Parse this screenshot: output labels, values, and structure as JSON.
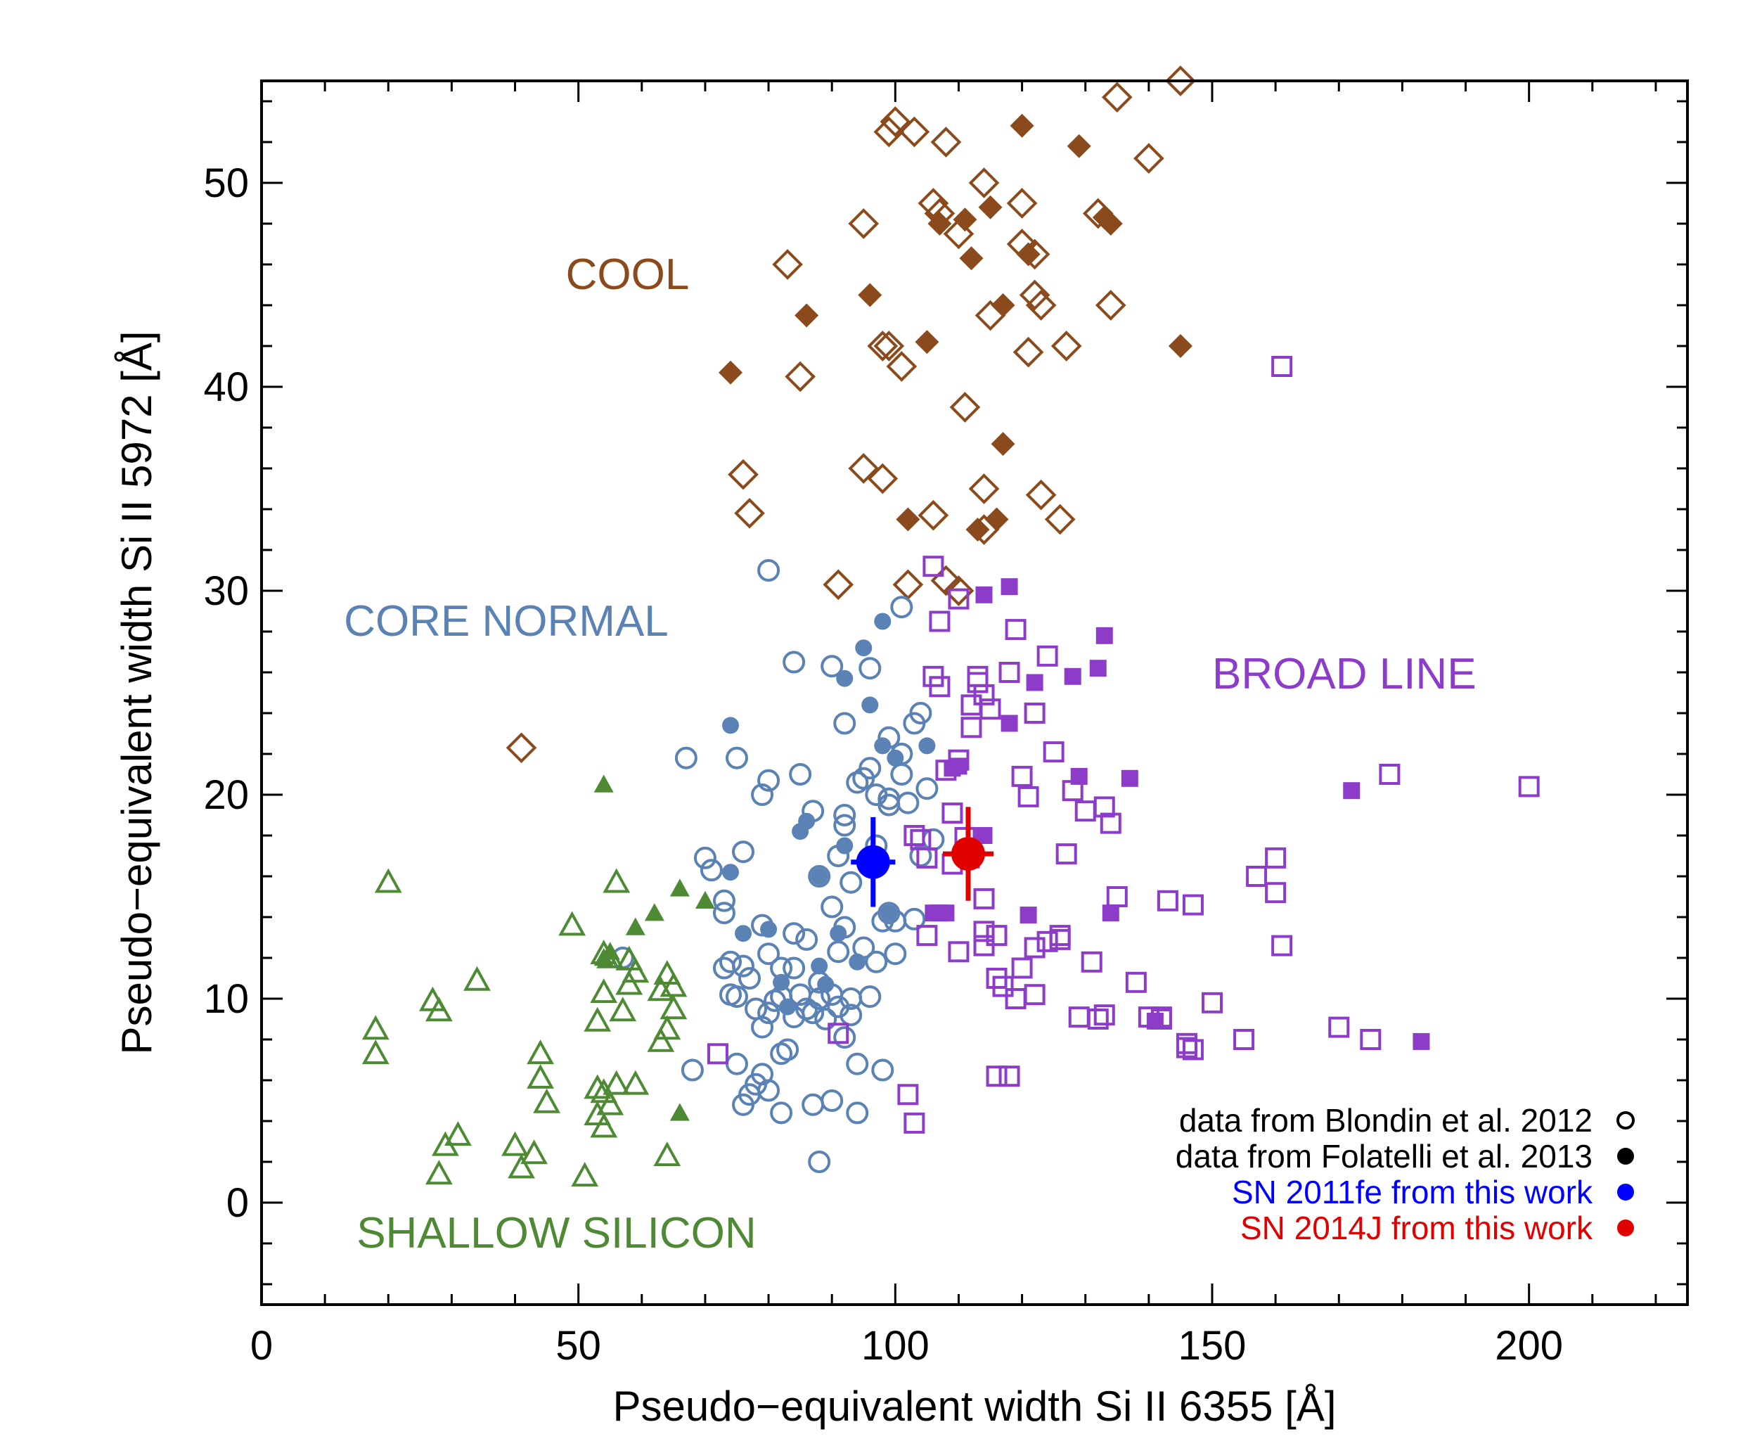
{
  "chart_data": {
    "type": "scatter",
    "title": "",
    "xlabel": "Pseudo−equivalent width Si II 6355 [Å]",
    "ylabel": "Pseudo−equivalent width Si II 5972 [Å]",
    "xlim": [
      0,
      225
    ],
    "ylim": [
      -5,
      55
    ],
    "xticks": [
      "0",
      "50",
      "100",
      "150",
      "200"
    ],
    "yticks": [
      "0",
      "10",
      "20",
      "30",
      "40",
      "50"
    ],
    "grid": false,
    "legend_position": "bottom-right",
    "legend": [
      {
        "label": "data from Blondin et al. 2012",
        "color": "#000000",
        "filled": false
      },
      {
        "label": "data from Folatelli et al. 2013",
        "color": "#000000",
        "filled": true
      },
      {
        "label": "SN 2011fe from this work",
        "color": "#0000ff",
        "filled": true
      },
      {
        "label": "SN 2014J from this work",
        "color": "#e00000",
        "filled": true
      }
    ],
    "group_labels": [
      {
        "text": "COOL",
        "color": "#8b4a1c"
      },
      {
        "text": "CORE NORMAL",
        "color": "#5b82b4"
      },
      {
        "text": "BROAD LINE",
        "color": "#8c3cc8"
      },
      {
        "text": "SHALLOW SILICON",
        "color": "#4e8a34"
      }
    ],
    "series": [
      {
        "name": "COOL",
        "marker": "diamond",
        "color": "#8b4a1c",
        "filled": false,
        "x": [
          100,
          103,
          108,
          99,
          106,
          114,
          120,
          95,
          132,
          110,
          120,
          122,
          123,
          83,
          122,
          134,
          98,
          127,
          99,
          85,
          101,
          111,
          76,
          77,
          95,
          98,
          114,
          123,
          106,
          126,
          91,
          102,
          108,
          110,
          114,
          140,
          41,
          107,
          135,
          145,
          115,
          121
        ],
        "y": [
          53,
          52.5,
          52,
          52.5,
          49,
          50,
          49,
          48,
          48.5,
          47.5,
          47,
          46.5,
          44,
          46,
          44.5,
          44,
          42,
          42,
          42,
          40.5,
          41,
          39,
          35.7,
          33.8,
          36,
          35.5,
          35,
          34.7,
          33.7,
          33.5,
          30.3,
          30.3,
          30.5,
          30,
          33,
          51.2,
          22.3,
          48.5,
          54.2,
          55,
          43.5,
          41.7
        ]
      },
      {
        "name": "COOL",
        "marker": "diamond",
        "color": "#8b4a1c",
        "filled": true,
        "x": [
          120,
          129,
          115,
          134,
          111,
          121,
          112,
          96,
          86,
          74,
          105,
          117,
          117,
          102,
          116,
          145,
          107,
          113,
          133
        ],
        "y": [
          52.8,
          51.8,
          48.8,
          48,
          48.2,
          46.5,
          46.3,
          44.5,
          43.5,
          40.7,
          42.2,
          44,
          37.2,
          33.5,
          33.5,
          42,
          48,
          33,
          48.3
        ]
      },
      {
        "name": "CORE NORMAL",
        "marker": "circle",
        "color": "#5b82b4",
        "filled": false,
        "x": [
          80,
          101,
          84,
          90,
          96,
          92,
          85,
          67,
          75,
          80,
          79,
          87,
          92,
          94,
          96,
          97,
          99,
          101,
          102,
          99,
          88,
          91,
          93,
          96,
          97,
          104,
          106,
          99,
          100,
          90,
          98,
          76,
          70,
          71,
          73,
          73,
          74,
          76,
          79,
          80,
          82,
          84,
          86,
          88,
          91,
          92,
          95,
          97,
          100,
          103,
          73,
          75,
          77,
          78,
          79,
          80,
          81,
          82,
          83,
          84,
          85,
          86,
          87,
          88,
          89,
          90,
          91,
          92,
          93,
          94,
          79,
          76,
          77,
          80,
          82,
          87,
          90,
          94,
          98,
          68,
          75,
          88,
          57,
          82,
          96,
          84,
          93,
          78,
          101,
          103,
          99,
          104,
          105,
          74,
          92,
          95
        ],
        "y": [
          31,
          29.2,
          26.5,
          26.3,
          26.2,
          23.5,
          21,
          21.8,
          21.8,
          20.7,
          20,
          19.2,
          19,
          20.6,
          21.3,
          20,
          19.5,
          21,
          19.6,
          22.8,
          16,
          17,
          15.7,
          16.8,
          17.5,
          17,
          17.8,
          14.2,
          13.8,
          14.5,
          13.8,
          17.2,
          16.9,
          16.3,
          14.8,
          14.2,
          11.8,
          11.6,
          13.6,
          12.2,
          11.5,
          13.2,
          12.9,
          10.8,
          12.3,
          13.5,
          12.5,
          11.8,
          12.2,
          13.9,
          11.5,
          10.1,
          11,
          9.5,
          8.6,
          9.3,
          9.9,
          7.3,
          7.5,
          9.1,
          10.2,
          9.5,
          9.3,
          10,
          9,
          10.2,
          9.6,
          8.1,
          9.2,
          6.8,
          6.3,
          4.8,
          5.3,
          5.5,
          4.4,
          4.8,
          5,
          4.4,
          6.5,
          6.5,
          6.8,
          2,
          12,
          10.1,
          10.1,
          11.5,
          10,
          5.8,
          22,
          23.5,
          19.8,
          24,
          20.3,
          10.2,
          18.5,
          20.8
        ]
      },
      {
        "name": "CORE NORMAL",
        "marker": "circle",
        "color": "#5b82b4",
        "filled": true,
        "x": [
          98,
          95,
          92,
          96,
          74,
          98,
          100,
          86,
          85,
          92,
          88,
          97,
          89,
          82,
          74,
          76,
          80,
          83,
          88,
          91,
          94,
          99,
          105
        ],
        "y": [
          28.5,
          27.2,
          25.7,
          24.4,
          23.4,
          22.4,
          21.8,
          18.7,
          18.2,
          17.5,
          16,
          16.8,
          10.7,
          10.8,
          16.2,
          13.2,
          13.4,
          9.6,
          11.6,
          13.2,
          11.8,
          14.2,
          22.4
        ]
      },
      {
        "name": "BROAD LINE",
        "marker": "square",
        "color": "#8c3cc8",
        "filled": false,
        "x": [
          161,
          106,
          110,
          107,
          106,
          113,
          107,
          112,
          119,
          124,
          118,
          114,
          115,
          122,
          125,
          110,
          108,
          120,
          130,
          128,
          133,
          134,
          127,
          104,
          105,
          103,
          109,
          114,
          116,
          122,
          126,
          131,
          135,
          138,
          142,
          143,
          147,
          150,
          160,
          160,
          157,
          161,
          178,
          200,
          109,
          111,
          114,
          116,
          120,
          124,
          126,
          133,
          140,
          146,
          155,
          146,
          170,
          175,
          102,
          103,
          105,
          110,
          114,
          117,
          119,
          122,
          129,
          132,
          142,
          147,
          116,
          118,
          121,
          91,
          72,
          113,
          112
        ],
        "y": [
          41,
          31.2,
          29.6,
          28.5,
          25.8,
          25.5,
          25.3,
          23.3,
          28.1,
          26.8,
          26,
          24.9,
          24.2,
          24,
          22.1,
          21.7,
          21.2,
          20.9,
          19.2,
          20.2,
          19.4,
          18.6,
          17.1,
          17.8,
          16.9,
          18,
          16.6,
          14.9,
          13.1,
          12.5,
          13.1,
          11.8,
          15,
          10.8,
          9.1,
          14.8,
          14.6,
          9.8,
          16.9,
          15.2,
          16,
          12.6,
          21,
          20.4,
          19.1,
          17.9,
          12.6,
          11,
          11.5,
          12.8,
          12.9,
          9.2,
          9.1,
          7.8,
          8,
          7.6,
          8.6,
          8,
          5.3,
          3.9,
          13.1,
          12.3,
          13.3,
          10.6,
          10,
          10.2,
          9.1,
          9,
          9,
          7.5,
          6.2,
          6.2,
          19.9,
          8.3,
          7.3,
          25.8,
          24.4
        ]
      },
      {
        "name": "BROAD LINE",
        "marker": "square",
        "color": "#8c3cc8",
        "filled": true,
        "x": [
          114,
          118,
          133,
          132,
          128,
          122,
          109,
          110,
          129,
          137,
          114,
          106,
          107,
          108,
          112,
          118,
          121,
          134,
          141,
          172,
          183
        ],
        "y": [
          29.8,
          30.2,
          27.8,
          26.2,
          25.8,
          25.5,
          21.3,
          21.4,
          20.9,
          20.8,
          18,
          14.2,
          14.2,
          14.2,
          16.8,
          23.5,
          14.1,
          14.2,
          8.9,
          20.2,
          7.9
        ]
      },
      {
        "name": "SHALLOW SILICON",
        "marker": "triangle",
        "color": "#4e8a34",
        "filled": false,
        "x": [
          20,
          34,
          27,
          28,
          18,
          18,
          29,
          31,
          28,
          40,
          41,
          43,
          44,
          44,
          45,
          49,
          55,
          54,
          56,
          58,
          59,
          58,
          57,
          53,
          54,
          63,
          64,
          65,
          65,
          64,
          63,
          59,
          56,
          53,
          54,
          55,
          64,
          53,
          54,
          51
        ],
        "y": [
          15.7,
          10.9,
          9.9,
          9.4,
          8.5,
          7.3,
          2.8,
          3.3,
          1.4,
          2.8,
          1.7,
          2.4,
          7.3,
          6.1,
          4.9,
          13.6,
          12,
          12.2,
          15.7,
          11.9,
          11.3,
          10.7,
          9.4,
          8.9,
          10.3,
          10.4,
          11.2,
          10.6,
          9.5,
          8.5,
          7.9,
          5.8,
          5.8,
          5.6,
          5.4,
          4.8,
          2.3,
          4.3,
          3.7,
          1.3
        ]
      },
      {
        "name": "SHALLOW SILICON",
        "marker": "triangle",
        "color": "#4e8a34",
        "filled": true,
        "x": [
          54,
          55,
          62,
          66,
          59,
          70,
          54,
          66
        ],
        "y": [
          20.5,
          12.3,
          14.2,
          15.4,
          13.5,
          14.8,
          12,
          4.4
        ]
      },
      {
        "name": "SN 2011fe from this work",
        "marker": "errorpoint",
        "color": "#0000ff",
        "filled": true,
        "x": [
          96.5
        ],
        "y": [
          16.7
        ],
        "xerr": [
          3.5
        ],
        "yerr": [
          2.2
        ]
      },
      {
        "name": "SN 2014J from this work",
        "marker": "errorpoint",
        "color": "#e00000",
        "filled": true,
        "x": [
          111.5
        ],
        "y": [
          17.1
        ],
        "xerr": [
          4.0
        ],
        "yerr": [
          2.3
        ]
      }
    ]
  }
}
